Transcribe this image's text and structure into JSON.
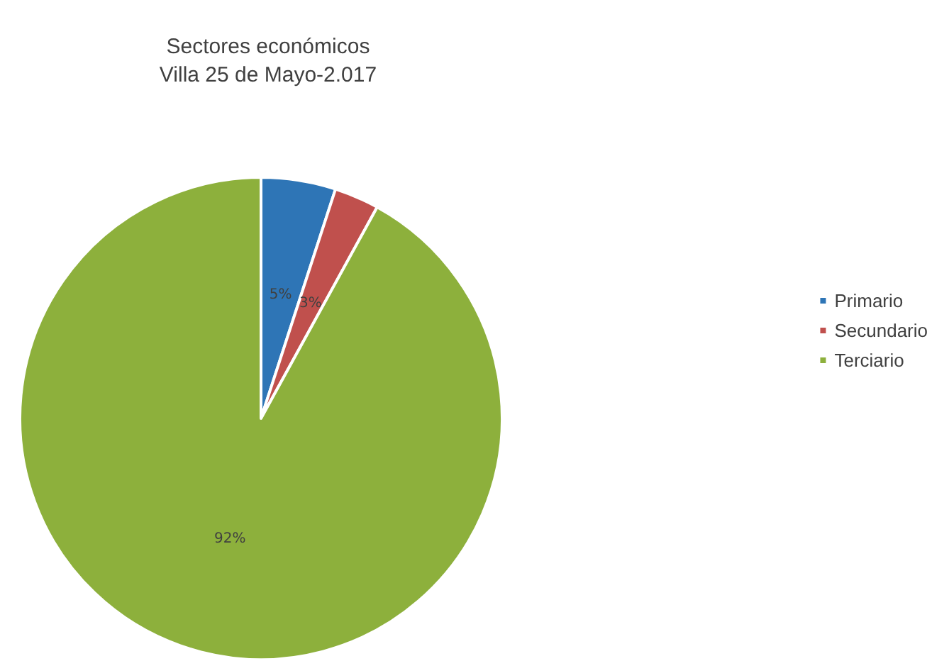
{
  "chart_data": {
    "type": "pie",
    "title": "Sectores económicos\nVilla 25 de Mayo-2.017",
    "categories": [
      "Primario",
      "Secundario",
      "Terciario"
    ],
    "values": [
      5,
      3,
      92
    ],
    "colors": [
      "#2e75b6",
      "#c0504d",
      "#8db03c"
    ],
    "value_labels": [
      "5%",
      "3%",
      "92%"
    ],
    "legend": "right"
  }
}
